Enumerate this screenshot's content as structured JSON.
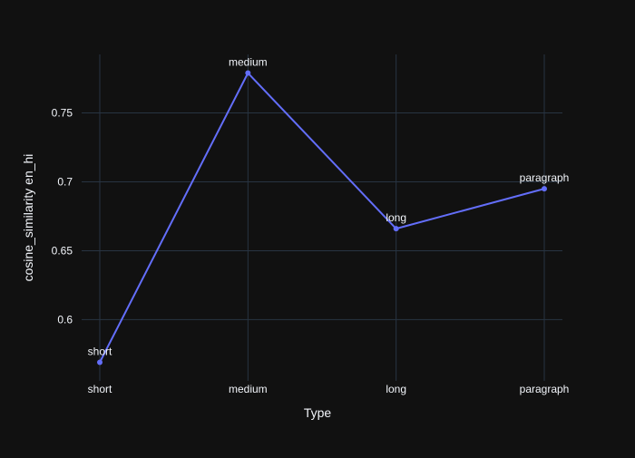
{
  "chart_data": {
    "type": "line",
    "title": "",
    "xlabel": "Type",
    "ylabel": "cosine_similarity en_hi",
    "categories": [
      "short",
      "medium",
      "long",
      "paragraph"
    ],
    "series": [
      {
        "values": [
          0.569,
          0.779,
          0.666,
          0.695
        ],
        "point_labels": [
          "short",
          "medium",
          "long",
          "paragraph"
        ]
      }
    ],
    "yticks": [
      0.6,
      0.65,
      0.7,
      0.75
    ],
    "ytick_labels": [
      "0.6",
      "0.65",
      "0.7",
      "0.75"
    ],
    "ylim": [
      0.5555,
      0.7925
    ],
    "grid": true,
    "legend": "none",
    "colors": {
      "background": "#111111",
      "grid": "#283442",
      "line": "#636efa",
      "text": "#f2f5fa"
    }
  }
}
